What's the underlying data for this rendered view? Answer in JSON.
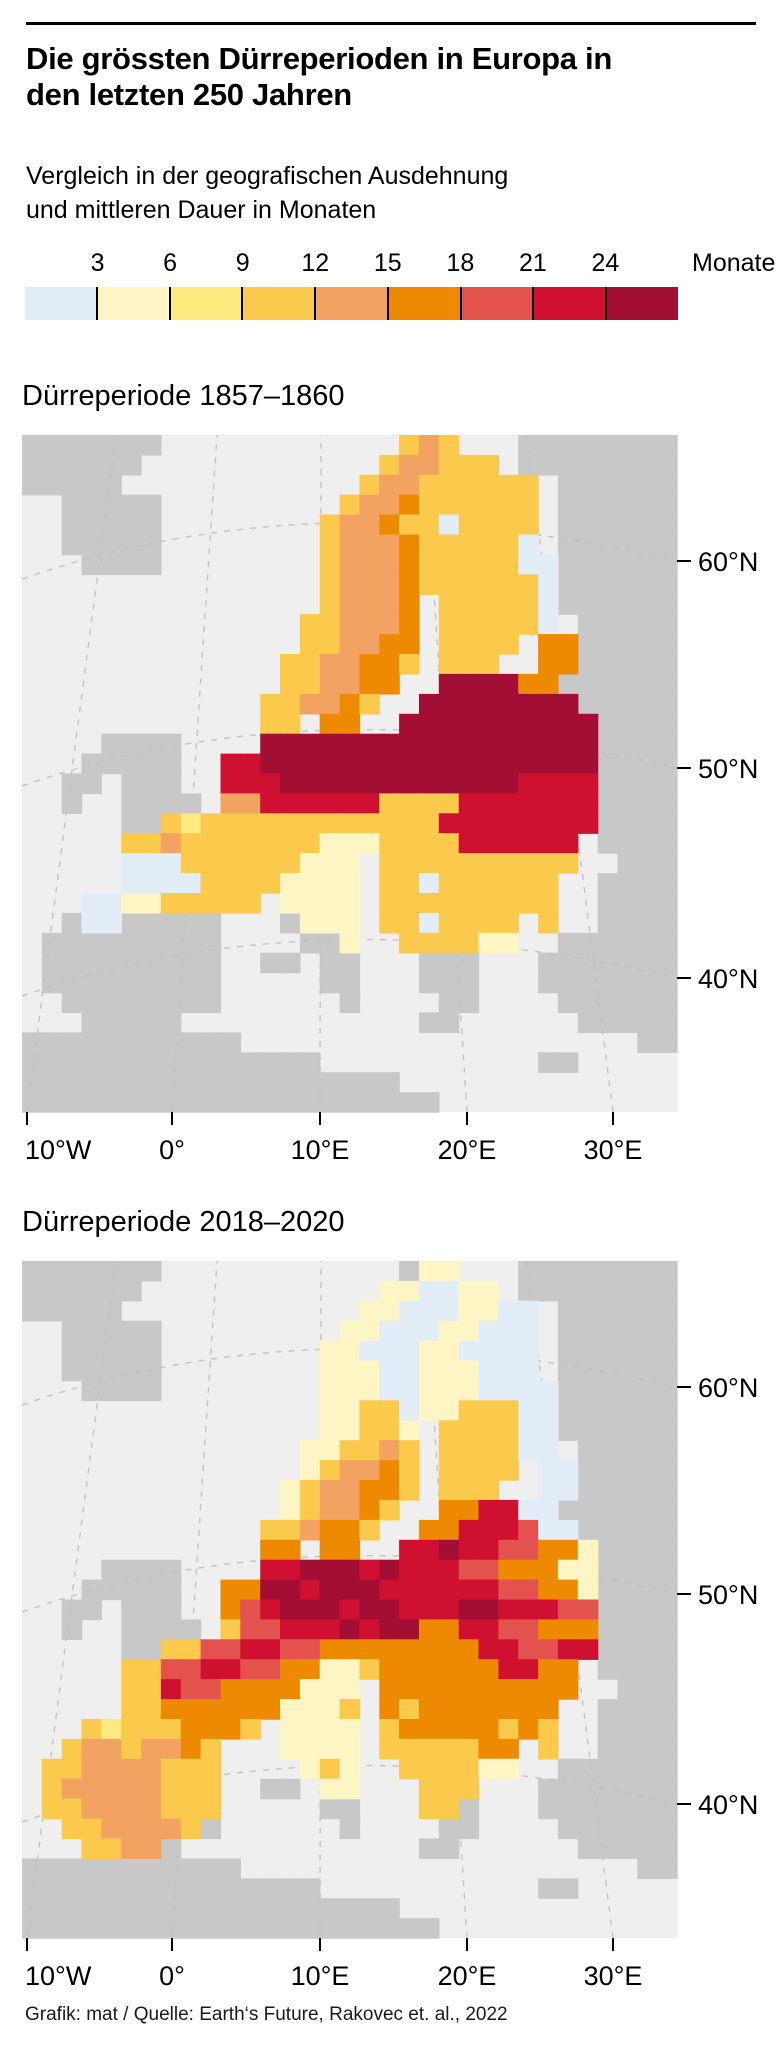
{
  "header": {
    "title_line1": "Die grössten Dürreperioden in Europa in",
    "title_line2": "den letzten 250 Jahren",
    "subtitle_line1": "Vergleich in der geografischen Ausdehnung",
    "subtitle_line2": "und mittleren Dauer in Monaten"
  },
  "chart_data": {
    "type": "heatmap",
    "title": "Die grössten Dürreperioden in Europa in den letzten 250 Jahren",
    "subtitle": "Vergleich in der geografischen Ausdehnung und mittleren Dauer in Monaten",
    "legend": {
      "tick_labels": [
        "3",
        "6",
        "9",
        "12",
        "15",
        "18",
        "21",
        "24"
      ],
      "unit_label": "Monate",
      "colors": [
        "#e2edf7",
        "#fdf5c3",
        "#fdea7e",
        "#fbc94c",
        "#f2a261",
        "#ed8a00",
        "#e4524e",
        "#d01030",
        "#a30e34"
      ],
      "bin_meaning": "mittlere Dauer in Monaten; Klassen: <3, 3-6, 6-9, 9-12, 12-15, 15-18, 18-21, 21-24, >24"
    },
    "geo": {
      "map_width": 655,
      "map_height": 677,
      "cols": 33,
      "rows": 34,
      "lon_tick_x": [
        5,
        150,
        298,
        445,
        591
      ],
      "lat_tick_y": [
        126,
        333,
        543
      ],
      "sea_color": "#efefef",
      "nodata_color": "#c8c8c8",
      "graticule_color": "#c3c3c3",
      "cell_legend": {
        ".": "sea",
        "g": "land-no-data",
        "1-9": "duration bin index into legend colors"
      }
    },
    "maps": [
      {
        "title": "Dürreperiode 1857–1860",
        "lon_ticks": [
          "10°W",
          "0°",
          "10°E",
          "20°E",
          "30°E"
        ],
        "lat_ticks": [
          "60°N",
          "50°N",
          "40°N"
        ],
        "grid": [
          "ggggggg............454...gggggggg",
          "gggggg............455444.gggggggg",
          "ggggg............455444444.gggggg",
          "..ggggg.........4556444444.gggggg",
          "..ggggg........45564414444.gggggg",
          "..ggggg........45556444441.gggggg",
          "...gggg........455564444411gggggg",
          "...............455564444441gggggg",
          "...............45556.444441gggggg",
          "..............445556.444441.ggggg",
          "..............445566.4444.66ggggg",
          ".............4455664.444..66ggggg",
          ".............445566..999966gggggg",
          "............445564..99999999ggggg",
          "............44.66..9999999999gggg",
          "....gggg....99999999999999999gggg",
          "...ggggg..8899999999999999999gggg",
          "..gg.ggg..8889999999999998888gggg",
          "..g..gggg.5588888844448888888gggg",
          ".....gg4344444444444488888888gggg",
          ".....44544444442224444888888.gggg",
          ".....111444444222.4444444444..ggg",
          ".....111144442222.441444444..gggg",
          "...112244444.2222.444444444..gggg",
          "..g11ggggg...g222.4414444.4..gggg",
          ".ggggggggg....gg2..444422..gggggg",
          ".ggggggggg..gg.gg...ggg...ggggggg",
          ".ggggggggg.....gg...ggg...ggggggg",
          "..gggggggg......g....gg....gggggg",
          "...ggggg............gg......ggggg",
          "ggggggggggg....................gg",
          "ggggggggggggggg...........gg.....",
          "ggggggggggggggggggg..............",
          "ggggggggggggggggggggg............"
        ]
      },
      {
        "title": "Dürreperiode 2018–2020",
        "lon_ticks": [
          "10°W",
          "0°",
          "10°E",
          "20°E",
          "30°E"
        ],
        "lat_ticks": [
          "60°N",
          "50°N",
          "40°N"
        ],
        "grid": [
          "ggggggg............g22...gggggggg",
          "gggggg............221122.gggggggg",
          "ggggg............221112211.gggggg",
          "..ggggg.........2211122111.gggggg",
          "..ggggg........22111221111.gggggg",
          "..ggggg........22211222111.gggggg",
          "...gggg........222112221111gggggg",
          "...............224412244411gggggg",
          "...............22442.444411gggggg",
          "..............224454.444411.ggggg",
          "..............245564.4444.11ggggg",
          ".............2455664.444..11ggggg",
          ".............245564..668811gggggg",
          "............445664..66888711ggggg",
          "............66.66..8898877662gggg",
          "....gggg....88999898887766622gggg",
          "...ggggg..6699899988888877662gggg",
          "..gg.ggg..6789998998889988877gggg",
          "..g..gggg.4778889899668877666gggg",
          ".....gg4477887766666666887788gggg",
          ".....44778877662246666668866.gggg",
          ".....448776666222.6666666666..ggg",
          ".....446666662224.646666666..gggg",
          "...434446664.2222.466666464..gggg",
          "..45545564...2222.4444466.4..gggg",
          ".445555444....242..444422..gggggg",
          ".455555444..gg.22...444...ggggggg",
          ".445555444.....gg...44g...ggggggg",
          "..4455554g......g....gg....gggggg",
          "...4455g............gg......ggggg",
          "ggggggggggg....................gg",
          "ggggggggggggggg...........gg.....",
          "ggggggggggggggggggg..............",
          "ggggggggggggggggggggg............"
        ]
      }
    ]
  },
  "footer": {
    "credit": "Grafik: mat / Quelle: Earth‘s Future, Rakovec et. al., 2022"
  }
}
